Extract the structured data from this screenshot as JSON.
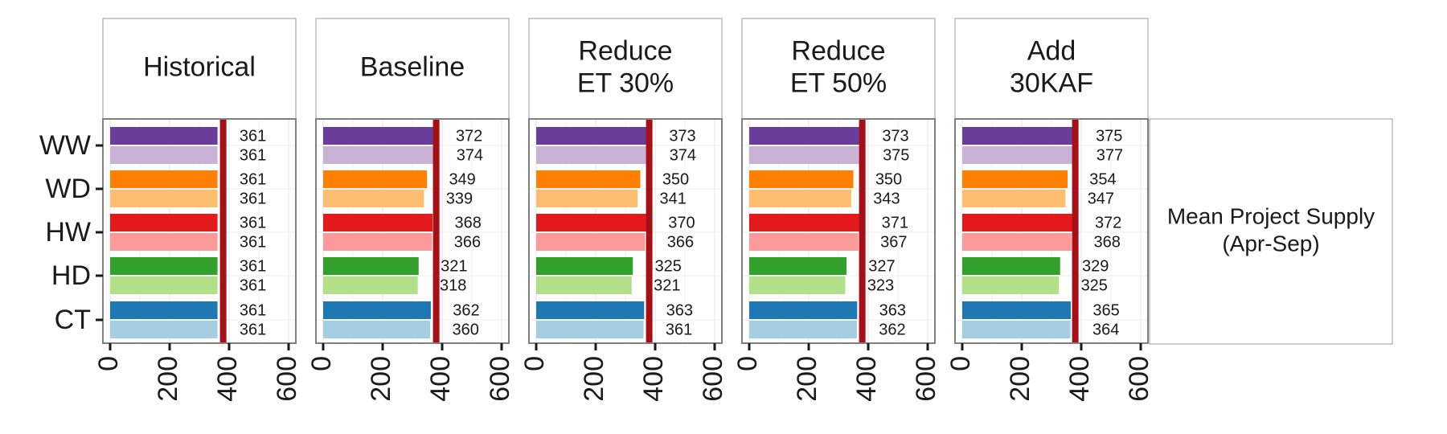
{
  "chart_data": {
    "type": "bar",
    "orientation": "horizontal",
    "grid": true,
    "xlim": [
      0,
      600
    ],
    "x_ticks": [
      "0",
      "200",
      "400",
      "600"
    ],
    "categories": [
      "WW",
      "WD",
      "HW",
      "HD",
      "CT"
    ],
    "sublabel": "Mean Project Supply\n(Apr-Sep)",
    "reference_value": 380,
    "reference_color": "#a50f15",
    "colors": {
      "WW": [
        "#6a3d9a",
        "#cab2d6"
      ],
      "WD": [
        "#ff7f00",
        "#fdbf6f"
      ],
      "HW": [
        "#e31a1c",
        "#fb9a99"
      ],
      "HD": [
        "#33a02c",
        "#b2df8a"
      ],
      "CT": [
        "#1f78b4",
        "#a6cee3"
      ]
    },
    "panels": [
      {
        "title": "Historical",
        "values": {
          "WW": [
            361,
            361
          ],
          "WD": [
            361,
            361
          ],
          "HW": [
            361,
            361
          ],
          "HD": [
            361,
            361
          ],
          "CT": [
            361,
            361
          ]
        }
      },
      {
        "title": "Baseline",
        "values": {
          "WW": [
            372,
            374
          ],
          "WD": [
            349,
            339
          ],
          "HW": [
            368,
            366
          ],
          "HD": [
            321,
            318
          ],
          "CT": [
            362,
            360
          ]
        }
      },
      {
        "title": "Reduce\nET 30%",
        "values": {
          "WW": [
            373,
            374
          ],
          "WD": [
            350,
            341
          ],
          "HW": [
            370,
            366
          ],
          "HD": [
            325,
            321
          ],
          "CT": [
            363,
            361
          ]
        }
      },
      {
        "title": "Reduce\nET 50%",
        "values": {
          "WW": [
            373,
            375
          ],
          "WD": [
            350,
            343
          ],
          "HW": [
            371,
            367
          ],
          "HD": [
            327,
            323
          ],
          "CT": [
            363,
            362
          ]
        }
      },
      {
        "title": "Add\n30KAF",
        "values": {
          "WW": [
            375,
            377
          ],
          "WD": [
            354,
            347
          ],
          "HW": [
            372,
            368
          ],
          "HD": [
            329,
            325
          ],
          "CT": [
            365,
            364
          ]
        }
      }
    ]
  }
}
